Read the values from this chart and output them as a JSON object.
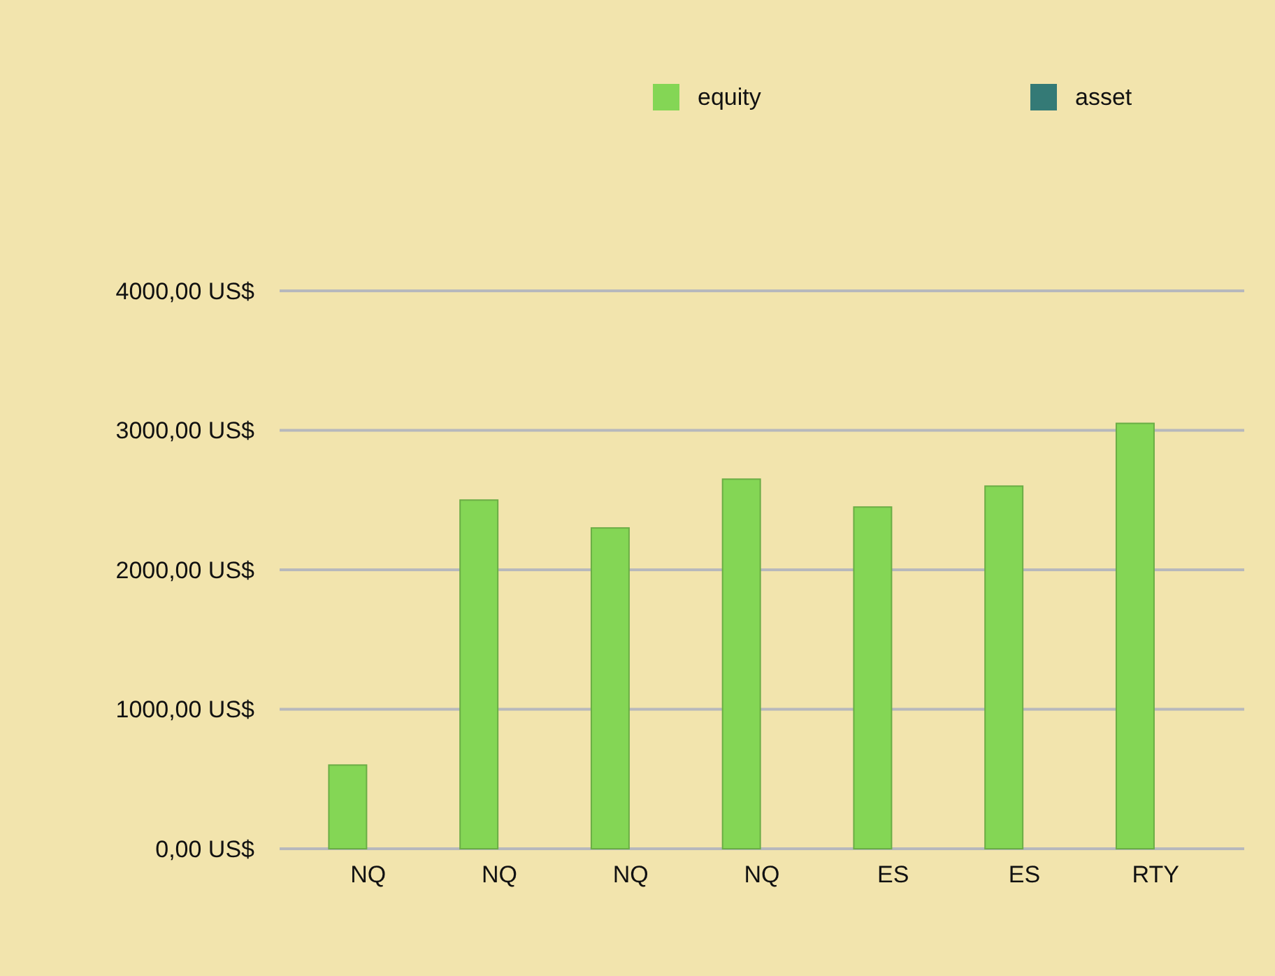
{
  "chart_data": {
    "type": "bar",
    "categories": [
      "NQ",
      "NQ",
      "NQ",
      "NQ",
      "ES",
      "ES",
      "RTY"
    ],
    "series": [
      {
        "name": "equity",
        "color": "#84d655",
        "values": [
          600,
          2500,
          2300,
          2650,
          2450,
          2600,
          3050
        ]
      },
      {
        "name": "asset",
        "color": "#347a76",
        "values": [
          null,
          null,
          null,
          null,
          null,
          null,
          null
        ]
      }
    ],
    "ylim": [
      0,
      4000
    ],
    "yticks": [
      {
        "value": 0,
        "label": "0,00 US$"
      },
      {
        "value": 1000,
        "label": "1000,00 US$"
      },
      {
        "value": 2000,
        "label": "2000,00 US$"
      },
      {
        "value": 3000,
        "label": "3000,00 US$"
      },
      {
        "value": 4000,
        "label": "4000,00 US$"
      }
    ],
    "grid": "y",
    "legend": "top"
  }
}
